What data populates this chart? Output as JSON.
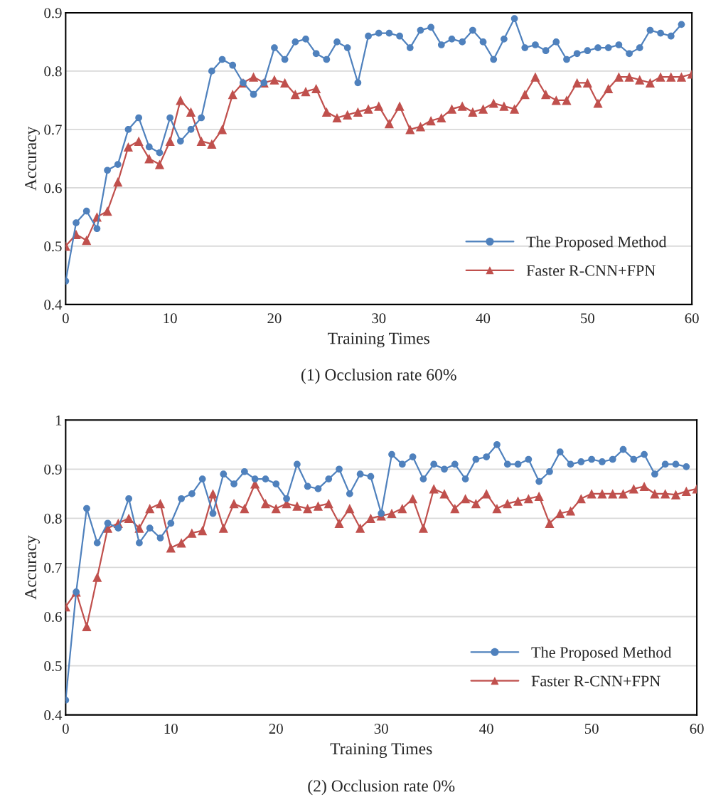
{
  "chart_data": [
    {
      "type": "line",
      "title": "(1) Occlusion rate 60%",
      "xlabel": "Training Times",
      "ylabel": "Accuracy",
      "xlim": [
        0,
        60
      ],
      "xticks": [
        0,
        10,
        20,
        30,
        40,
        50,
        60
      ],
      "ylim": [
        0.4,
        0.9
      ],
      "yticks": [
        0.4,
        0.5,
        0.6,
        0.7,
        0.8,
        0.9
      ],
      "grid": "y",
      "legend": "bottom right",
      "line_style": "solid",
      "series": [
        {
          "name": "The Proposed Method",
          "color": "#4f81bd",
          "marker": "circle",
          "x": [
            0,
            1,
            2,
            3,
            4,
            5,
            6,
            7,
            8,
            9,
            10,
            11,
            12,
            13,
            14,
            15,
            16,
            17,
            18,
            19,
            20,
            21,
            22,
            23,
            24,
            25,
            26,
            27,
            28,
            29,
            30,
            31,
            32,
            33,
            34,
            35,
            36,
            37,
            38,
            39,
            40,
            41,
            42,
            43,
            44,
            45,
            46,
            47,
            48,
            49,
            50,
            51,
            52,
            53,
            54,
            55,
            56,
            57,
            58,
            59
          ],
          "values": [
            0.44,
            0.54,
            0.56,
            0.53,
            0.63,
            0.64,
            0.7,
            0.72,
            0.67,
            0.66,
            0.72,
            0.68,
            0.7,
            0.72,
            0.8,
            0.82,
            0.81,
            0.78,
            0.76,
            0.78,
            0.84,
            0.82,
            0.85,
            0.855,
            0.83,
            0.82,
            0.85,
            0.84,
            0.78,
            0.86,
            0.865,
            0.865,
            0.86,
            0.84,
            0.87,
            0.875,
            0.845,
            0.855,
            0.85,
            0.87,
            0.85,
            0.82,
            0.855,
            0.89,
            0.84,
            0.845,
            0.835,
            0.85,
            0.82,
            0.83,
            0.835,
            0.84,
            0.84,
            0.845,
            0.83,
            0.84,
            0.87,
            0.865,
            0.86,
            0.88
          ]
        },
        {
          "name": "Faster R-CNN+FPN",
          "color": "#c0504d",
          "marker": "triangle",
          "x": [
            0,
            1,
            2,
            3,
            4,
            5,
            6,
            7,
            8,
            9,
            10,
            11,
            12,
            13,
            14,
            15,
            16,
            17,
            18,
            19,
            20,
            21,
            22,
            23,
            24,
            25,
            26,
            27,
            28,
            29,
            30,
            31,
            32,
            33,
            34,
            35,
            36,
            37,
            38,
            39,
            40,
            41,
            42,
            43,
            44,
            45,
            46,
            47,
            48,
            49,
            50,
            51,
            52,
            53,
            54,
            55,
            56,
            57,
            58,
            59,
            60
          ],
          "values": [
            0.5,
            0.52,
            0.51,
            0.55,
            0.56,
            0.61,
            0.67,
            0.68,
            0.65,
            0.64,
            0.68,
            0.75,
            0.73,
            0.68,
            0.675,
            0.7,
            0.76,
            0.78,
            0.79,
            0.78,
            0.785,
            0.78,
            0.76,
            0.765,
            0.77,
            0.73,
            0.72,
            0.725,
            0.73,
            0.735,
            0.74,
            0.71,
            0.74,
            0.7,
            0.705,
            0.715,
            0.72,
            0.735,
            0.74,
            0.73,
            0.735,
            0.745,
            0.74,
            0.735,
            0.76,
            0.79,
            0.76,
            0.75,
            0.75,
            0.78,
            0.78,
            0.745,
            0.77,
            0.79,
            0.79,
            0.785,
            0.78,
            0.79,
            0.79,
            0.79,
            0.795
          ]
        }
      ]
    },
    {
      "type": "line",
      "title": "(2) Occlusion rate 0%",
      "xlabel": "Training Times",
      "ylabel": "Accuracy",
      "xlim": [
        0,
        60
      ],
      "xticks": [
        0,
        10,
        20,
        30,
        40,
        50,
        60
      ],
      "ylim": [
        0.4,
        1.0
      ],
      "yticks": [
        0.4,
        0.5,
        0.6,
        0.7,
        0.8,
        0.9,
        {
          "value": 1.0,
          "label": "1"
        }
      ],
      "grid": "y",
      "legend": "bottom right",
      "line_style": "solid",
      "series": [
        {
          "name": "The Proposed Method",
          "color": "#4f81bd",
          "marker": "circle",
          "x": [
            0,
            1,
            2,
            3,
            4,
            5,
            6,
            7,
            8,
            9,
            10,
            11,
            12,
            13,
            14,
            15,
            16,
            17,
            18,
            19,
            20,
            21,
            22,
            23,
            24,
            25,
            26,
            27,
            28,
            29,
            30,
            31,
            32,
            33,
            34,
            35,
            36,
            37,
            38,
            39,
            40,
            41,
            42,
            43,
            44,
            45,
            46,
            47,
            48,
            49,
            50,
            51,
            52,
            53,
            54,
            55,
            56,
            57,
            58,
            59
          ],
          "values": [
            0.43,
            0.65,
            0.82,
            0.75,
            0.79,
            0.78,
            0.84,
            0.75,
            0.78,
            0.76,
            0.79,
            0.84,
            0.85,
            0.88,
            0.81,
            0.89,
            0.87,
            0.895,
            0.88,
            0.88,
            0.87,
            0.84,
            0.91,
            0.865,
            0.86,
            0.88,
            0.9,
            0.85,
            0.89,
            0.885,
            0.81,
            0.93,
            0.91,
            0.925,
            0.88,
            0.91,
            0.9,
            0.91,
            0.88,
            0.92,
            0.925,
            0.95,
            0.91,
            0.91,
            0.92,
            0.875,
            0.895,
            0.935,
            0.91,
            0.915,
            0.92,
            0.915,
            0.92,
            0.94,
            0.92,
            0.93,
            0.89,
            0.91,
            0.91,
            0.905
          ]
        },
        {
          "name": "Faster R-CNN+FPN",
          "color": "#c0504d",
          "marker": "triangle",
          "x": [
            0,
            1,
            2,
            3,
            4,
            5,
            6,
            7,
            8,
            9,
            10,
            11,
            12,
            13,
            14,
            15,
            16,
            17,
            18,
            19,
            20,
            21,
            22,
            23,
            24,
            25,
            26,
            27,
            28,
            29,
            30,
            31,
            32,
            33,
            34,
            35,
            36,
            37,
            38,
            39,
            40,
            41,
            42,
            43,
            44,
            45,
            46,
            47,
            48,
            49,
            50,
            51,
            52,
            53,
            54,
            55,
            56,
            57,
            58,
            59,
            60
          ],
          "values": [
            0.62,
            0.65,
            0.58,
            0.68,
            0.78,
            0.79,
            0.8,
            0.78,
            0.82,
            0.83,
            0.74,
            0.75,
            0.77,
            0.775,
            0.85,
            0.78,
            0.83,
            0.82,
            0.87,
            0.83,
            0.82,
            0.83,
            0.825,
            0.82,
            0.825,
            0.83,
            0.79,
            0.82,
            0.78,
            0.8,
            0.805,
            0.81,
            0.82,
            0.84,
            0.78,
            0.86,
            0.85,
            0.82,
            0.84,
            0.83,
            0.85,
            0.82,
            0.83,
            0.835,
            0.84,
            0.845,
            0.79,
            0.81,
            0.815,
            0.84,
            0.85,
            0.85,
            0.85,
            0.85,
            0.86,
            0.865,
            0.85,
            0.85,
            0.848,
            0.855,
            0.86
          ]
        }
      ]
    }
  ]
}
